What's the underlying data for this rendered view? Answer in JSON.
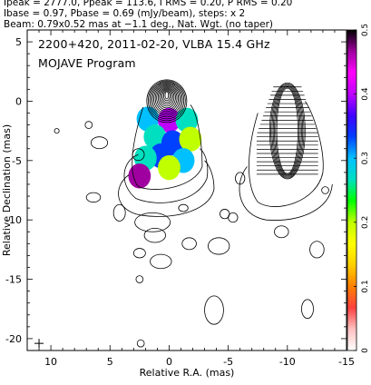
{
  "header": {
    "line1": "Ipeak = 2777.0, Ppeak = 113.6, I RMS = 0.20, P RMS = 0.20",
    "line2": "Ibase = 0.97, Pbase = 0.69 (mJy/beam), steps: x 2",
    "line3": "Beam: 0.79x0.52 mas at −1.1 deg., Nat. Wgt. (no taper)"
  },
  "overlay": {
    "source_line": "2200+420, 2011-02-20, VLBA 15.4 GHz",
    "program_line": "MOJAVE Program"
  },
  "chart_data": {
    "type": "heatmap",
    "xlabel": "Relative R.A. (mas)",
    "ylabel": "Relative Declination (mas)",
    "xlim": [
      12,
      -15
    ],
    "ylim": [
      -21,
      6
    ],
    "x_ticks": [
      10,
      5,
      0,
      -5,
      -10,
      -15
    ],
    "y_ticks": [
      5,
      0,
      -5,
      -10,
      -15,
      -20
    ],
    "colorbar": {
      "range": [
        0,
        0.5
      ],
      "ticks": [
        0,
        0.1,
        0.2,
        0.3,
        0.4,
        0.5
      ],
      "colors": [
        "#ffffff",
        "#ffc0c0",
        "#ff4040",
        "#ff8000",
        "#ffd000",
        "#ffff00",
        "#c0ff00",
        "#00ff00",
        "#00e0c0",
        "#00c0ff",
        "#0040ff",
        "#4000ff",
        "#c000ff",
        "#ff00ff",
        "#a000a0",
        "#000000"
      ]
    },
    "total_intensity_components": [
      {
        "x": 0.2,
        "y": 0.5,
        "peak": 1.0
      },
      {
        "x": 0.0,
        "y": -2.5,
        "peak": 0.3
      },
      {
        "x": -0.5,
        "y": -6.0,
        "peak": 0.08
      },
      {
        "x": 1.5,
        "y": -11.0,
        "peak": 0.02
      }
    ],
    "fractional_polarization_map": [
      {
        "x": 1.8,
        "y": -1.5,
        "value": 0.29
      },
      {
        "x": 0.0,
        "y": -1.6,
        "value": 0.4
      },
      {
        "x": -1.5,
        "y": -1.6,
        "value": 0.26
      },
      {
        "x": 1.2,
        "y": -3.0,
        "value": 0.27
      },
      {
        "x": -0.3,
        "y": -3.5,
        "value": 0.32
      },
      {
        "x": -1.8,
        "y": -3.2,
        "value": 0.2
      },
      {
        "x": 0.7,
        "y": -4.6,
        "value": 0.34
      },
      {
        "x": -1.2,
        "y": -5.0,
        "value": 0.3
      },
      {
        "x": 2.0,
        "y": -4.8,
        "value": 0.25
      },
      {
        "x": 0.0,
        "y": -5.6,
        "value": 0.2
      },
      {
        "x": 2.5,
        "y": -6.3,
        "value": 0.46
      }
    ]
  }
}
